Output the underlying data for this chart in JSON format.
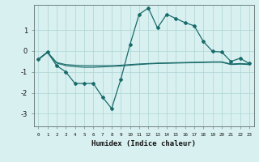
{
  "xlabel": "Humidex (Indice chaleur)",
  "bg_color": "#d8f0f0",
  "grid_color": "#aed4d4",
  "line_color": "#1a6b6b",
  "x_ticks": [
    0,
    1,
    2,
    3,
    4,
    5,
    6,
    7,
    8,
    9,
    10,
    11,
    12,
    13,
    14,
    15,
    16,
    17,
    18,
    19,
    20,
    21,
    22,
    23
  ],
  "ylim": [
    -3.6,
    2.2
  ],
  "xlim": [
    -0.5,
    23.5
  ],
  "series1_x": [
    0,
    1,
    2,
    3,
    4,
    5,
    6,
    7,
    8,
    9,
    10,
    11,
    12,
    13,
    14,
    15,
    16,
    17,
    18,
    19,
    20,
    21,
    22,
    23
  ],
  "series1_y": [
    -0.4,
    -0.05,
    -0.7,
    -1.0,
    -1.55,
    -1.55,
    -1.55,
    -2.2,
    -2.75,
    -1.35,
    0.3,
    1.75,
    2.05,
    1.1,
    1.75,
    1.55,
    1.35,
    1.2,
    0.45,
    -0.02,
    -0.05,
    -0.5,
    -0.35,
    -0.6
  ],
  "series2_x": [
    0,
    1,
    2,
    3,
    4,
    5,
    6,
    7,
    8,
    9,
    10,
    11,
    12,
    13,
    14,
    15,
    16,
    17,
    18,
    19,
    20,
    21,
    22,
    23
  ],
  "series2_y": [
    -0.4,
    -0.05,
    -0.55,
    -0.65,
    -0.68,
    -0.7,
    -0.7,
    -0.7,
    -0.7,
    -0.68,
    -0.65,
    -0.62,
    -0.6,
    -0.58,
    -0.57,
    -0.56,
    -0.55,
    -0.54,
    -0.53,
    -0.52,
    -0.52,
    -0.62,
    -0.6,
    -0.62
  ],
  "series3_x": [
    0,
    1,
    2,
    3,
    4,
    5,
    6,
    7,
    8,
    9,
    10,
    11,
    12,
    13,
    14,
    15,
    16,
    17,
    18,
    19,
    20,
    21,
    22,
    23
  ],
  "series3_y": [
    -0.42,
    -0.08,
    -0.58,
    -0.7,
    -0.75,
    -0.78,
    -0.78,
    -0.76,
    -0.74,
    -0.72,
    -0.68,
    -0.65,
    -0.62,
    -0.6,
    -0.59,
    -0.58,
    -0.57,
    -0.56,
    -0.55,
    -0.54,
    -0.54,
    -0.65,
    -0.63,
    -0.65
  ],
  "yticks": [
    -3,
    -2,
    -1,
    0,
    1
  ],
  "ytick_labels": [
    "-3",
    "-2",
    "-1",
    "0",
    "1"
  ]
}
